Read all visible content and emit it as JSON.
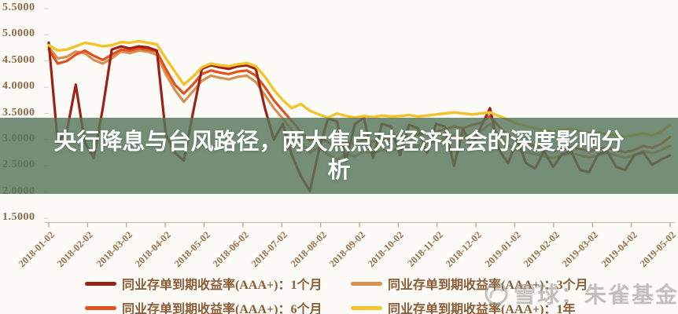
{
  "banner": {
    "title": "央行降息与台风路径，两大焦点对经济社会的深度影响分析",
    "lines": [
      "央行降息与台风路径，两大焦点对经济社会的深度影响分",
      "析"
    ],
    "bg_rgba": "rgba(87,117,91,0.82)",
    "text_color": "#ffffff"
  },
  "watermark": {
    "icon": "snowball-logo",
    "text": "雪球：朱雀基金"
  },
  "chart_data": {
    "type": "line",
    "title": "",
    "xlabel": "",
    "ylabel": "",
    "x_unit": "weekly samples from 2018-01-02 to 2019-05-02",
    "x_tick_labels": [
      "2018-01-02",
      "2018-02-02",
      "2018-03-02",
      "2018-04-02",
      "2018-05-02",
      "2018-06-02",
      "2018-07-02",
      "2018-08-02",
      "2018-09-02",
      "2018-10-02",
      "2018-11-02",
      "2018-12-02",
      "2019-01-02",
      "2019-02-02",
      "2019-03-02",
      "2019-04-02",
      "2019-05-02"
    ],
    "y_ticks": [
      5.5,
      5.0,
      4.5,
      4.0,
      3.5,
      3.0,
      2.5,
      2.0,
      1.5
    ],
    "y_tick_labels": [
      "5.5000",
      "5.0000",
      "4.5000",
      "4.0000",
      "3.5000",
      "3.0000",
      "2.5000",
      "2.0000",
      "1.5000"
    ],
    "ylim": [
      1.5,
      5.5
    ],
    "grid": false,
    "legend_position": "bottom",
    "axis_label_color": "#96704a",
    "series": [
      {
        "name": "同业存单到期收益率(AAA+)：1个月",
        "color": "#9e2115",
        "width": 3.2,
        "values": [
          4.85,
          2.95,
          3.15,
          4.05,
          2.95,
          2.65,
          3.6,
          4.72,
          4.78,
          4.74,
          4.78,
          4.76,
          4.7,
          3.1,
          2.75,
          2.6,
          3.5,
          4.35,
          4.42,
          4.38,
          4.35,
          4.4,
          4.42,
          4.35,
          3.6,
          3.0,
          3.3,
          2.7,
          2.3,
          2.02,
          2.8,
          3.4,
          3.35,
          2.6,
          3.3,
          3.42,
          2.65,
          3.3,
          3.25,
          2.7,
          3.28,
          3.22,
          2.75,
          3.3,
          3.25,
          2.5,
          3.2,
          2.85,
          3.25,
          3.6,
          2.8,
          2.55,
          3.0,
          2.55,
          2.45,
          2.78,
          2.48,
          2.72,
          2.78,
          2.42,
          2.38,
          2.72,
          2.78,
          2.48,
          2.42,
          2.7,
          2.76,
          2.52,
          2.62,
          2.7
        ]
      },
      {
        "name": "同业存单到期收益率(AAA+)：3个月",
        "color": "#d6904f",
        "width": 3.2,
        "values": [
          4.76,
          4.55,
          4.58,
          4.68,
          4.65,
          4.52,
          4.45,
          4.55,
          4.68,
          4.65,
          4.7,
          4.68,
          4.62,
          4.25,
          3.95,
          3.72,
          3.92,
          4.12,
          4.22,
          4.18,
          4.15,
          4.2,
          4.22,
          4.1,
          3.85,
          3.6,
          3.4,
          3.18,
          2.95,
          2.75,
          2.85,
          2.72,
          2.62,
          2.72,
          2.68,
          2.78,
          2.74,
          2.8,
          2.78,
          2.86,
          2.84,
          2.88,
          2.92,
          2.96,
          3.02,
          3.08,
          3.05,
          3.1,
          3.16,
          3.3,
          3.08,
          2.9,
          2.8,
          2.76,
          2.72,
          2.68,
          2.65,
          2.7,
          2.74,
          2.7,
          2.66,
          2.7,
          2.74,
          2.7,
          2.65,
          2.7,
          2.78,
          2.74,
          2.8,
          2.88
        ]
      },
      {
        "name": "同业存单到期收益率(AAA+)：6个月",
        "color": "#e2521c",
        "width": 3.2,
        "values": [
          4.72,
          4.45,
          4.5,
          4.62,
          4.7,
          4.6,
          4.52,
          4.62,
          4.72,
          4.7,
          4.74,
          4.72,
          4.68,
          4.35,
          4.05,
          3.88,
          4.05,
          4.25,
          4.32,
          4.28,
          4.25,
          4.3,
          4.32,
          4.22,
          4.0,
          3.75,
          3.55,
          3.35,
          3.15,
          2.98,
          3.05,
          2.95,
          2.88,
          2.95,
          2.92,
          3.0,
          2.96,
          3.02,
          3.0,
          3.08,
          3.05,
          3.1,
          3.12,
          3.15,
          3.2,
          3.25,
          3.22,
          3.28,
          3.32,
          3.45,
          3.25,
          3.08,
          2.98,
          2.92,
          2.88,
          2.82,
          2.78,
          2.82,
          2.86,
          2.82,
          2.78,
          2.82,
          2.85,
          2.8,
          2.76,
          2.8,
          2.88,
          2.84,
          2.92,
          3.05
        ]
      },
      {
        "name": "同业存单到期收益率(AAA+)：1年",
        "color": "#f2c32a",
        "width": 3.4,
        "values": [
          4.8,
          4.7,
          4.72,
          4.78,
          4.85,
          4.82,
          4.78,
          4.8,
          4.86,
          4.85,
          4.88,
          4.85,
          4.82,
          4.55,
          4.3,
          4.05,
          4.2,
          4.38,
          4.45,
          4.42,
          4.4,
          4.44,
          4.46,
          4.4,
          4.2,
          3.95,
          3.75,
          3.6,
          3.68,
          3.55,
          3.48,
          3.42,
          3.5,
          3.45,
          3.42,
          3.45,
          3.43,
          3.46,
          3.44,
          3.45,
          3.47,
          3.44,
          3.46,
          3.48,
          3.5,
          3.52,
          3.5,
          3.48,
          3.5,
          3.52,
          3.45,
          3.38,
          3.3,
          3.26,
          3.22,
          3.18,
          3.15,
          3.18,
          3.2,
          3.16,
          3.12,
          3.14,
          3.1,
          3.08,
          3.06,
          3.08,
          3.12,
          3.08,
          3.15,
          3.28
        ]
      }
    ]
  }
}
